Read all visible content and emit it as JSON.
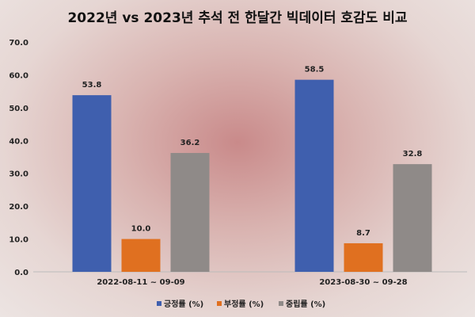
{
  "chart_data": {
    "type": "bar",
    "title": "2022년 vs 2023년 추석 전 한달간 빅데이터 호감도 비교",
    "categories": [
      "2022-08-11 ~ 09-09",
      "2023-08-30 ~ 09-28"
    ],
    "series": [
      {
        "name": "긍정률 (%)",
        "values": [
          53.8,
          58.5
        ],
        "color": "#3f5fae"
      },
      {
        "name": "부정률 (%)",
        "values": [
          10.0,
          8.7
        ],
        "color": "#e07020"
      },
      {
        "name": "중립률 (%)",
        "values": [
          36.2,
          32.8
        ],
        "color": "#8f8a88"
      }
    ],
    "yticks": [
      "0.0",
      "10.0",
      "20.0",
      "30.0",
      "40.0",
      "50.0",
      "60.0",
      "70.0"
    ],
    "ylim": [
      0,
      70
    ],
    "xlabel": "",
    "ylabel": "",
    "legend": "bottom",
    "grid": false
  }
}
